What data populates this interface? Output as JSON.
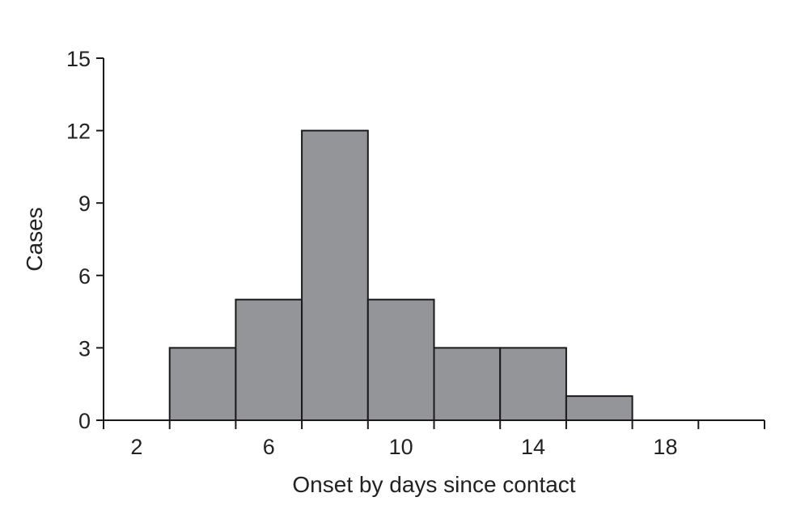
{
  "chart_data": {
    "type": "bar",
    "histogram": true,
    "title": "",
    "xlabel": "Onset by days since contact",
    "ylabel": "Cases",
    "bins": [
      {
        "start": 3,
        "end": 5,
        "value": 3
      },
      {
        "start": 5,
        "end": 7,
        "value": 5
      },
      {
        "start": 7,
        "end": 9,
        "value": 12
      },
      {
        "start": 9,
        "end": 11,
        "value": 5
      },
      {
        "start": 11,
        "end": 13,
        "value": 3
      },
      {
        "start": 13,
        "end": 15,
        "value": 3
      },
      {
        "start": 15,
        "end": 17,
        "value": 1
      }
    ],
    "xlim": [
      1,
      21
    ],
    "ylim": [
      0,
      15
    ],
    "x_ticks": [
      2,
      6,
      10,
      14,
      18
    ],
    "x_minor_ticks": [
      1,
      3,
      5,
      7,
      9,
      11,
      13,
      15,
      17,
      19,
      21
    ],
    "x_tick_labels": [
      "2",
      "6",
      "10",
      "14",
      "18"
    ],
    "y_ticks": [
      0,
      3,
      6,
      9,
      12,
      15
    ],
    "y_tick_labels": [
      "0",
      "3",
      "6",
      "9",
      "12",
      "15"
    ],
    "grid": false,
    "legend": "none",
    "colors": {
      "bar_fill": "#939598",
      "bar_stroke": "#1a1a1a",
      "axis": "#1a1a1a",
      "text": "#222222"
    }
  }
}
